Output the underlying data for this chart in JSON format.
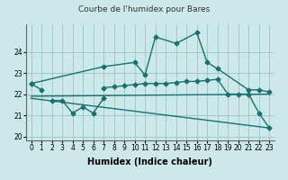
{
  "title": "Courbe de l'humidex pour Bares",
  "xlabel": "Humidex (Indice chaleur)",
  "xlim": [
    -0.5,
    23.5
  ],
  "ylim": [
    19.8,
    25.3
  ],
  "yticks": [
    20,
    21,
    22,
    23,
    24
  ],
  "xticks": [
    0,
    1,
    2,
    3,
    4,
    5,
    6,
    7,
    8,
    9,
    10,
    11,
    12,
    13,
    14,
    15,
    16,
    17,
    18,
    19,
    20,
    21,
    22,
    23
  ],
  "bg_color": "#cce8e8",
  "grid_color": "#8fbfbf",
  "line_color": "#1a7070",
  "line1_x": [
    0,
    1
  ],
  "line1_y": [
    22.5,
    22.2
  ],
  "line2_x": [
    2,
    3,
    4,
    5,
    6,
    7
  ],
  "line2_y": [
    21.7,
    21.7,
    21.1,
    21.4,
    21.1,
    21.8
  ],
  "line3_x": [
    0,
    7,
    10,
    11,
    12,
    14,
    16,
    17,
    18,
    21,
    22,
    23
  ],
  "line3_y": [
    22.5,
    23.3,
    23.5,
    22.9,
    24.7,
    24.4,
    24.9,
    23.5,
    23.2,
    22.2,
    22.2,
    22.1
  ],
  "line4_x": [
    0,
    23
  ],
  "line4_y": [
    21.8,
    20.4
  ],
  "line5_x": [
    0,
    23
  ],
  "line5_y": [
    21.9,
    22.0
  ],
  "line6_x": [
    7,
    8,
    9,
    10,
    11,
    12,
    13,
    14,
    15,
    16,
    17,
    18,
    19,
    20,
    21,
    22,
    23
  ],
  "line6_y": [
    22.3,
    22.35,
    22.4,
    22.45,
    22.5,
    22.5,
    22.5,
    22.55,
    22.6,
    22.6,
    22.65,
    22.7,
    22.0,
    22.0,
    22.0,
    21.1,
    20.4
  ]
}
